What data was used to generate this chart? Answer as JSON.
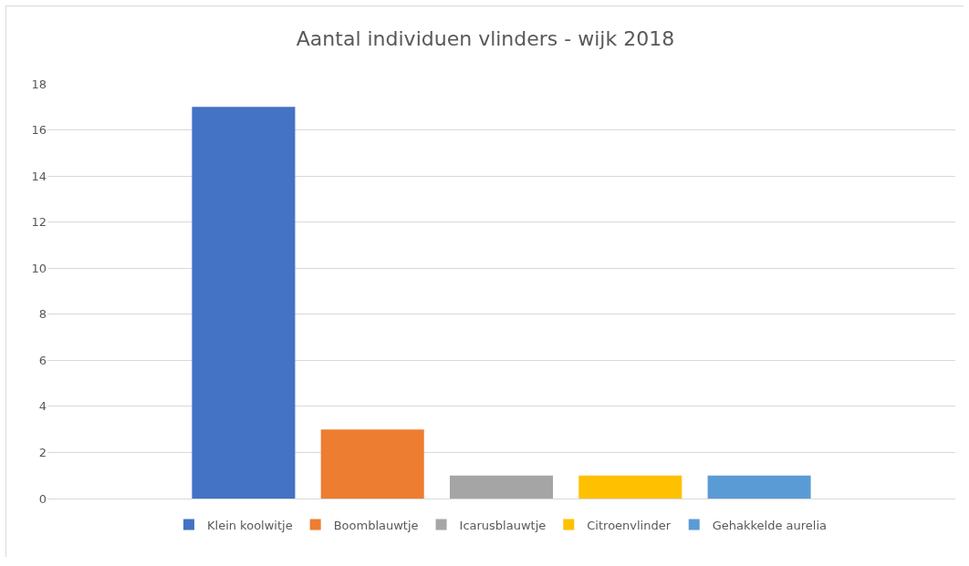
{
  "chart_data": {
    "type": "bar",
    "title": "Aantal individuen vlinders - wijk 2018",
    "categories": [
      null
    ],
    "series": [
      {
        "name": "Klein koolwitje",
        "color": "#4472c4",
        "values": [
          17
        ]
      },
      {
        "name": "Boomblauwtje",
        "color": "#ed7d31",
        "values": [
          3
        ]
      },
      {
        "name": "Icarusblauwtje",
        "color": "#a5a5a5",
        "values": [
          1
        ]
      },
      {
        "name": "Citroenvlinder",
        "color": "#ffc000",
        "values": [
          1
        ]
      },
      {
        "name": "Gehakkelde aurelia",
        "color": "#5b9bd5",
        "values": [
          1
        ]
      }
    ],
    "ylim": [
      0,
      18
    ],
    "yticks": [
      0,
      2,
      4,
      6,
      8,
      10,
      12,
      14,
      16,
      18
    ],
    "grid": "y",
    "legend": "bottom"
  }
}
